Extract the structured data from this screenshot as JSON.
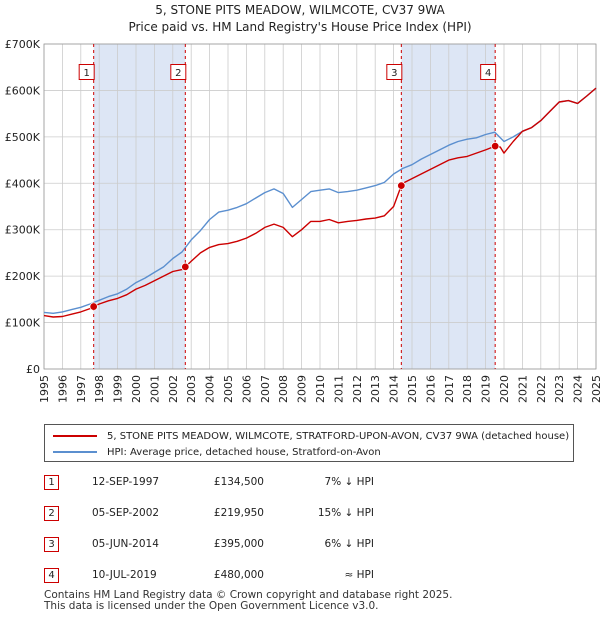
{
  "chart_data": {
    "type": "line",
    "title_line1": "5, STONE PITS MEADOW, WILMCOTE, CV37 9WA",
    "title_line2": "Price paid vs. HM Land Registry's House Price Index (HPI)",
    "y_ticks": [
      "£0",
      "£100K",
      "£200K",
      "£300K",
      "£400K",
      "£500K",
      "£600K",
      "£700K"
    ],
    "y_tick_values": [
      0,
      100000,
      200000,
      300000,
      400000,
      500000,
      600000,
      700000
    ],
    "x_ticks": [
      "1995",
      "1996",
      "1997",
      "1998",
      "1999",
      "2000",
      "2001",
      "2002",
      "2003",
      "2004",
      "2005",
      "2006",
      "2007",
      "2008",
      "2009",
      "2010",
      "2011",
      "2012",
      "2013",
      "2014",
      "2015",
      "2016",
      "2017",
      "2018",
      "2019",
      "2020",
      "2021",
      "2022",
      "2023",
      "2024",
      "2025"
    ],
    "xlim": [
      1995,
      2025
    ],
    "ylim": [
      0,
      700000
    ],
    "grid": true,
    "series": [
      {
        "name": "5, STONE PITS MEADOW, WILMCOTE, STRATFORD-UPON-AVON, CV37 9WA (detached house)",
        "color": "#cc0000",
        "x": [
          1995.0,
          1995.5,
          1996.0,
          1996.5,
          1997.0,
          1997.5,
          1997.7,
          1998.0,
          1998.5,
          1999.0,
          1999.5,
          2000.0,
          2000.5,
          2001.0,
          2001.5,
          2002.0,
          2002.5,
          2002.68,
          2003.0,
          2003.5,
          2004.0,
          2004.5,
          2005.0,
          2005.5,
          2006.0,
          2006.5,
          2007.0,
          2007.5,
          2008.0,
          2008.5,
          2009.0,
          2009.5,
          2010.0,
          2010.5,
          2011.0,
          2011.5,
          2012.0,
          2012.5,
          2013.0,
          2013.5,
          2014.0,
          2014.42,
          2014.6,
          2015.0,
          2015.5,
          2016.0,
          2016.5,
          2017.0,
          2017.5,
          2018.0,
          2018.5,
          2019.0,
          2019.52,
          2019.8,
          2020.0,
          2020.5,
          2021.0,
          2021.5,
          2022.0,
          2022.5,
          2023.0,
          2023.5,
          2024.0,
          2024.5,
          2025.0
        ],
        "values": [
          115000,
          112000,
          113000,
          118000,
          123000,
          130000,
          134500,
          140000,
          147000,
          152000,
          160000,
          172000,
          180000,
          190000,
          200000,
          210000,
          214000,
          219950,
          232000,
          250000,
          262000,
          268000,
          270000,
          275000,
          282000,
          292000,
          305000,
          312000,
          305000,
          285000,
          300000,
          318000,
          318000,
          322000,
          315000,
          318000,
          320000,
          323000,
          325000,
          330000,
          350000,
          395000,
          402000,
          410000,
          420000,
          430000,
          440000,
          450000,
          455000,
          458000,
          465000,
          472000,
          480000,
          478000,
          465000,
          490000,
          512000,
          520000,
          535000,
          555000,
          575000,
          578000,
          572000,
          588000,
          605000
        ]
      },
      {
        "name": "HPI: Average price, detached house, Stratford-on-Avon",
        "color": "#5b8fcf",
        "x": [
          1995.0,
          1995.5,
          1996.0,
          1996.5,
          1997.0,
          1997.5,
          1998.0,
          1998.5,
          1999.0,
          1999.5,
          2000.0,
          2000.5,
          2001.0,
          2001.5,
          2002.0,
          2002.5,
          2003.0,
          2003.5,
          2004.0,
          2004.5,
          2005.0,
          2005.5,
          2006.0,
          2006.5,
          2007.0,
          2007.5,
          2008.0,
          2008.5,
          2009.0,
          2009.5,
          2010.0,
          2010.5,
          2011.0,
          2011.5,
          2012.0,
          2012.5,
          2013.0,
          2013.5,
          2014.0,
          2014.5,
          2015.0,
          2015.5,
          2016.0,
          2016.5,
          2017.0,
          2017.5,
          2018.0,
          2018.5,
          2019.0,
          2019.5,
          2020.0,
          2020.5,
          2021.0,
          2021.5,
          2022.0,
          2022.5,
          2023.0,
          2023.5,
          2024.0,
          2024.5,
          2025.0
        ],
        "values": [
          122000,
          120000,
          123000,
          128000,
          133000,
          140000,
          148000,
          156000,
          162000,
          172000,
          186000,
          196000,
          208000,
          220000,
          238000,
          252000,
          278000,
          298000,
          322000,
          338000,
          342000,
          348000,
          356000,
          368000,
          380000,
          388000,
          378000,
          348000,
          365000,
          382000,
          385000,
          388000,
          380000,
          382000,
          385000,
          390000,
          395000,
          402000,
          420000,
          432000,
          440000,
          452000,
          462000,
          472000,
          482000,
          490000,
          495000,
          498000,
          505000,
          510000,
          490000,
          500000,
          512000,
          520000,
          535000,
          555000,
          575000,
          578000,
          572000,
          588000,
          605000
        ]
      }
    ],
    "markers": [
      {
        "label": "1",
        "x": 1997.7,
        "value": 134500
      },
      {
        "label": "2",
        "x": 2002.68,
        "value": 219950
      },
      {
        "label": "3",
        "x": 2014.42,
        "value": 395000
      },
      {
        "label": "4",
        "x": 2019.52,
        "value": 480000
      }
    ],
    "shaded_ranges": [
      [
        1997.7,
        2002.68
      ],
      [
        2014.42,
        2019.52
      ]
    ],
    "hatched_from": 2025.0
  },
  "legend": {
    "property_label": "5, STONE PITS MEADOW, WILMCOTE, STRATFORD-UPON-AVON, CV37 9WA (detached house)",
    "hpi_label": "HPI: Average price, detached house, Stratford-on-Avon"
  },
  "transactions": [
    {
      "num": "1",
      "date": "12-SEP-1997",
      "price": "£134,500",
      "vs_hpi": "7% ↓ HPI"
    },
    {
      "num": "2",
      "date": "05-SEP-2002",
      "price": "£219,950",
      "vs_hpi": "15% ↓ HPI"
    },
    {
      "num": "3",
      "date": "05-JUN-2014",
      "price": "£395,000",
      "vs_hpi": "6% ↓ HPI"
    },
    {
      "num": "4",
      "date": "10-JUL-2019",
      "price": "£480,000",
      "vs_hpi": "≈ HPI"
    }
  ],
  "footer": {
    "line1": "Contains HM Land Registry data © Crown copyright and database right 2025.",
    "line2": "This data is licensed under the Open Government Licence v3.0."
  },
  "colors": {
    "property": "#cc0000",
    "hpi": "#5b8fcf",
    "shade": "#dde6f5",
    "grid": "#cccccc",
    "marker_line": "#cc0000"
  }
}
